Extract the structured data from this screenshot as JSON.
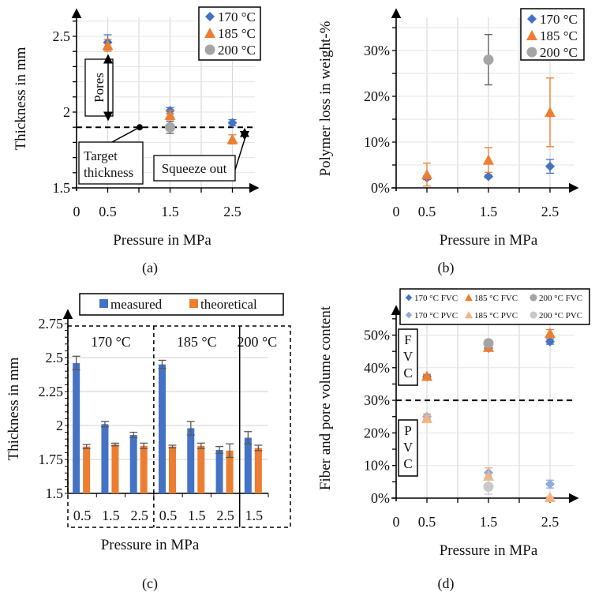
{
  "colors": {
    "c170": "#4472C4",
    "c185": "#ED7D31",
    "c200": "#A5A5A5",
    "c170_light": "#8FAADC",
    "c185_light": "#F4B183",
    "c200_light": "#C9C9C9",
    "err": "#595959"
  },
  "chart_data": [
    {
      "panel_label": "(a)",
      "type": "scatter",
      "xlabel": "Pressure in MPa",
      "ylabel": "Thickness in mm",
      "xlim": [
        0,
        2.9
      ],
      "ylim": [
        1.5,
        2.7
      ],
      "x_ticklabels": [
        "0",
        "0.5",
        "1.5",
        "2.5"
      ],
      "y_ticklabels": [
        "1.5",
        "2",
        "2.5"
      ],
      "grid": true,
      "legend": "top-right",
      "target_line": 1.9,
      "annotations": {
        "pores": "Pores",
        "target": "Target thickness",
        "target_line1": "Target",
        "target_line2": "thickness",
        "squeeze": "Squeeze out"
      },
      "series": [
        {
          "name": "170 °C",
          "marker": "diamond",
          "x": [
            0.5,
            1.5,
            2.5
          ],
          "y": [
            2.46,
            2.01,
            1.93
          ],
          "err": [
            0.05,
            0.02,
            0.02
          ]
        },
        {
          "name": "185 °C",
          "marker": "triangle",
          "x": [
            0.5,
            1.5,
            2.5
          ],
          "y": [
            2.44,
            1.98,
            1.82
          ],
          "err": [
            0.04,
            0.03,
            0.03
          ]
        },
        {
          "name": "200 °C",
          "marker": "circle",
          "x": [
            1.5
          ],
          "y": [
            1.9
          ],
          "err": [
            0.04
          ]
        }
      ]
    },
    {
      "panel_label": "(b)",
      "type": "scatter",
      "xlabel": "Pressure in MPa",
      "ylabel": "Polymer loss in weight-%",
      "xlim": [
        0,
        2.9
      ],
      "ylim": [
        0,
        38
      ],
      "x_ticklabels": [
        "0",
        "0.5",
        "1.5",
        "2.5"
      ],
      "y_ticklabels": [
        "0%",
        "10%",
        "20%",
        "30%"
      ],
      "grid": true,
      "legend": "top-right",
      "series": [
        {
          "name": "170 °C",
          "marker": "diamond",
          "x": [
            0.5,
            1.5,
            2.5
          ],
          "y": [
            2.2,
            2.5,
            4.7
          ],
          "err": [
            0.4,
            0.3,
            1.5
          ]
        },
        {
          "name": "185 °C",
          "marker": "triangle",
          "x": [
            0.5,
            1.5,
            2.5
          ],
          "y": [
            2.9,
            6.1,
            16.5
          ],
          "err": [
            2.5,
            2.7,
            7.5
          ]
        },
        {
          "name": "200 °C",
          "marker": "circle",
          "x": [
            1.5
          ],
          "y": [
            28.0
          ],
          "err": [
            5.5
          ]
        }
      ]
    },
    {
      "panel_label": "(c)",
      "type": "bar",
      "xlabel": "Pressure in MPa",
      "ylabel": "Thickness in mm",
      "ylim": [
        1.5,
        2.75
      ],
      "y_ticklabels": [
        "1.5",
        "1.75",
        "2",
        "2.25",
        "2.5",
        "2.75"
      ],
      "categories": [
        "0.5",
        "1.5",
        "2.5",
        "0.5",
        "1.5",
        "2.5",
        "1.5"
      ],
      "groups": [
        {
          "label": "170 °C",
          "count": 3
        },
        {
          "label": "185 °C",
          "count": 3
        },
        {
          "label": "200 °C",
          "count": 1
        }
      ],
      "grid": true,
      "legend": "top",
      "series": [
        {
          "name": "measured",
          "values": [
            2.46,
            2.01,
            1.93,
            2.45,
            1.98,
            1.82,
            1.91
          ],
          "err": [
            0.05,
            0.02,
            0.02,
            0.03,
            0.05,
            0.025,
            0.045
          ]
        },
        {
          "name": "theoretical",
          "values": [
            1.845,
            1.86,
            1.85,
            1.845,
            1.85,
            1.815,
            1.835
          ],
          "err": [
            0.015,
            0.01,
            0.02,
            0.01,
            0.02,
            0.05,
            0.02
          ]
        }
      ]
    },
    {
      "panel_label": "(d)",
      "type": "scatter",
      "xlabel": "Pressure in MPa",
      "ylabel": "Fiber and pore volume content",
      "xlim": [
        0,
        2.9
      ],
      "ylim": [
        0,
        57
      ],
      "x_ticklabels": [
        "0",
        "0.5",
        "1.5",
        "2.5"
      ],
      "y_ticklabels": [
        "0%",
        "10%",
        "20%",
        "30%",
        "40%",
        "50%"
      ],
      "grid": true,
      "legend": "top",
      "divider_line": 30,
      "annotations": {
        "fvc": [
          "F",
          "V",
          "C"
        ],
        "pvc": [
          "P",
          "V",
          "C"
        ]
      },
      "series": [
        {
          "name": "170 °C FVC",
          "marker": "diamond",
          "x": [
            0.5,
            1.5,
            2.5
          ],
          "y": [
            37.2,
            46.0,
            48.0
          ],
          "err": [
            0.6,
            0.8,
            0.8
          ]
        },
        {
          "name": "185 °C FVC",
          "marker": "triangle",
          "x": [
            0.5,
            1.5,
            2.5
          ],
          "y": [
            37.4,
            46.3,
            50.5
          ],
          "err": [
            0.6,
            0.8,
            1.2
          ]
        },
        {
          "name": "200 °C FVC",
          "marker": "circle",
          "x": [
            1.5
          ],
          "y": [
            47.5
          ],
          "err": [
            1.0
          ]
        },
        {
          "name": "170 °C PVC",
          "marker": "diamond",
          "x": [
            0.5,
            1.5,
            2.5
          ],
          "y": [
            25.0,
            7.8,
            4.3
          ],
          "err": [
            0.8,
            1.5,
            1.2
          ]
        },
        {
          "name": "185 °C PVC",
          "marker": "triangle",
          "x": [
            0.5,
            1.5,
            2.5
          ],
          "y": [
            24.5,
            6.8,
            0.2
          ],
          "err": [
            0.8,
            2.5,
            0.3
          ]
        },
        {
          "name": "200 °C PVC",
          "marker": "circle",
          "x": [
            1.5
          ],
          "y": [
            3.5
          ],
          "err": [
            2.3
          ]
        }
      ]
    }
  ]
}
